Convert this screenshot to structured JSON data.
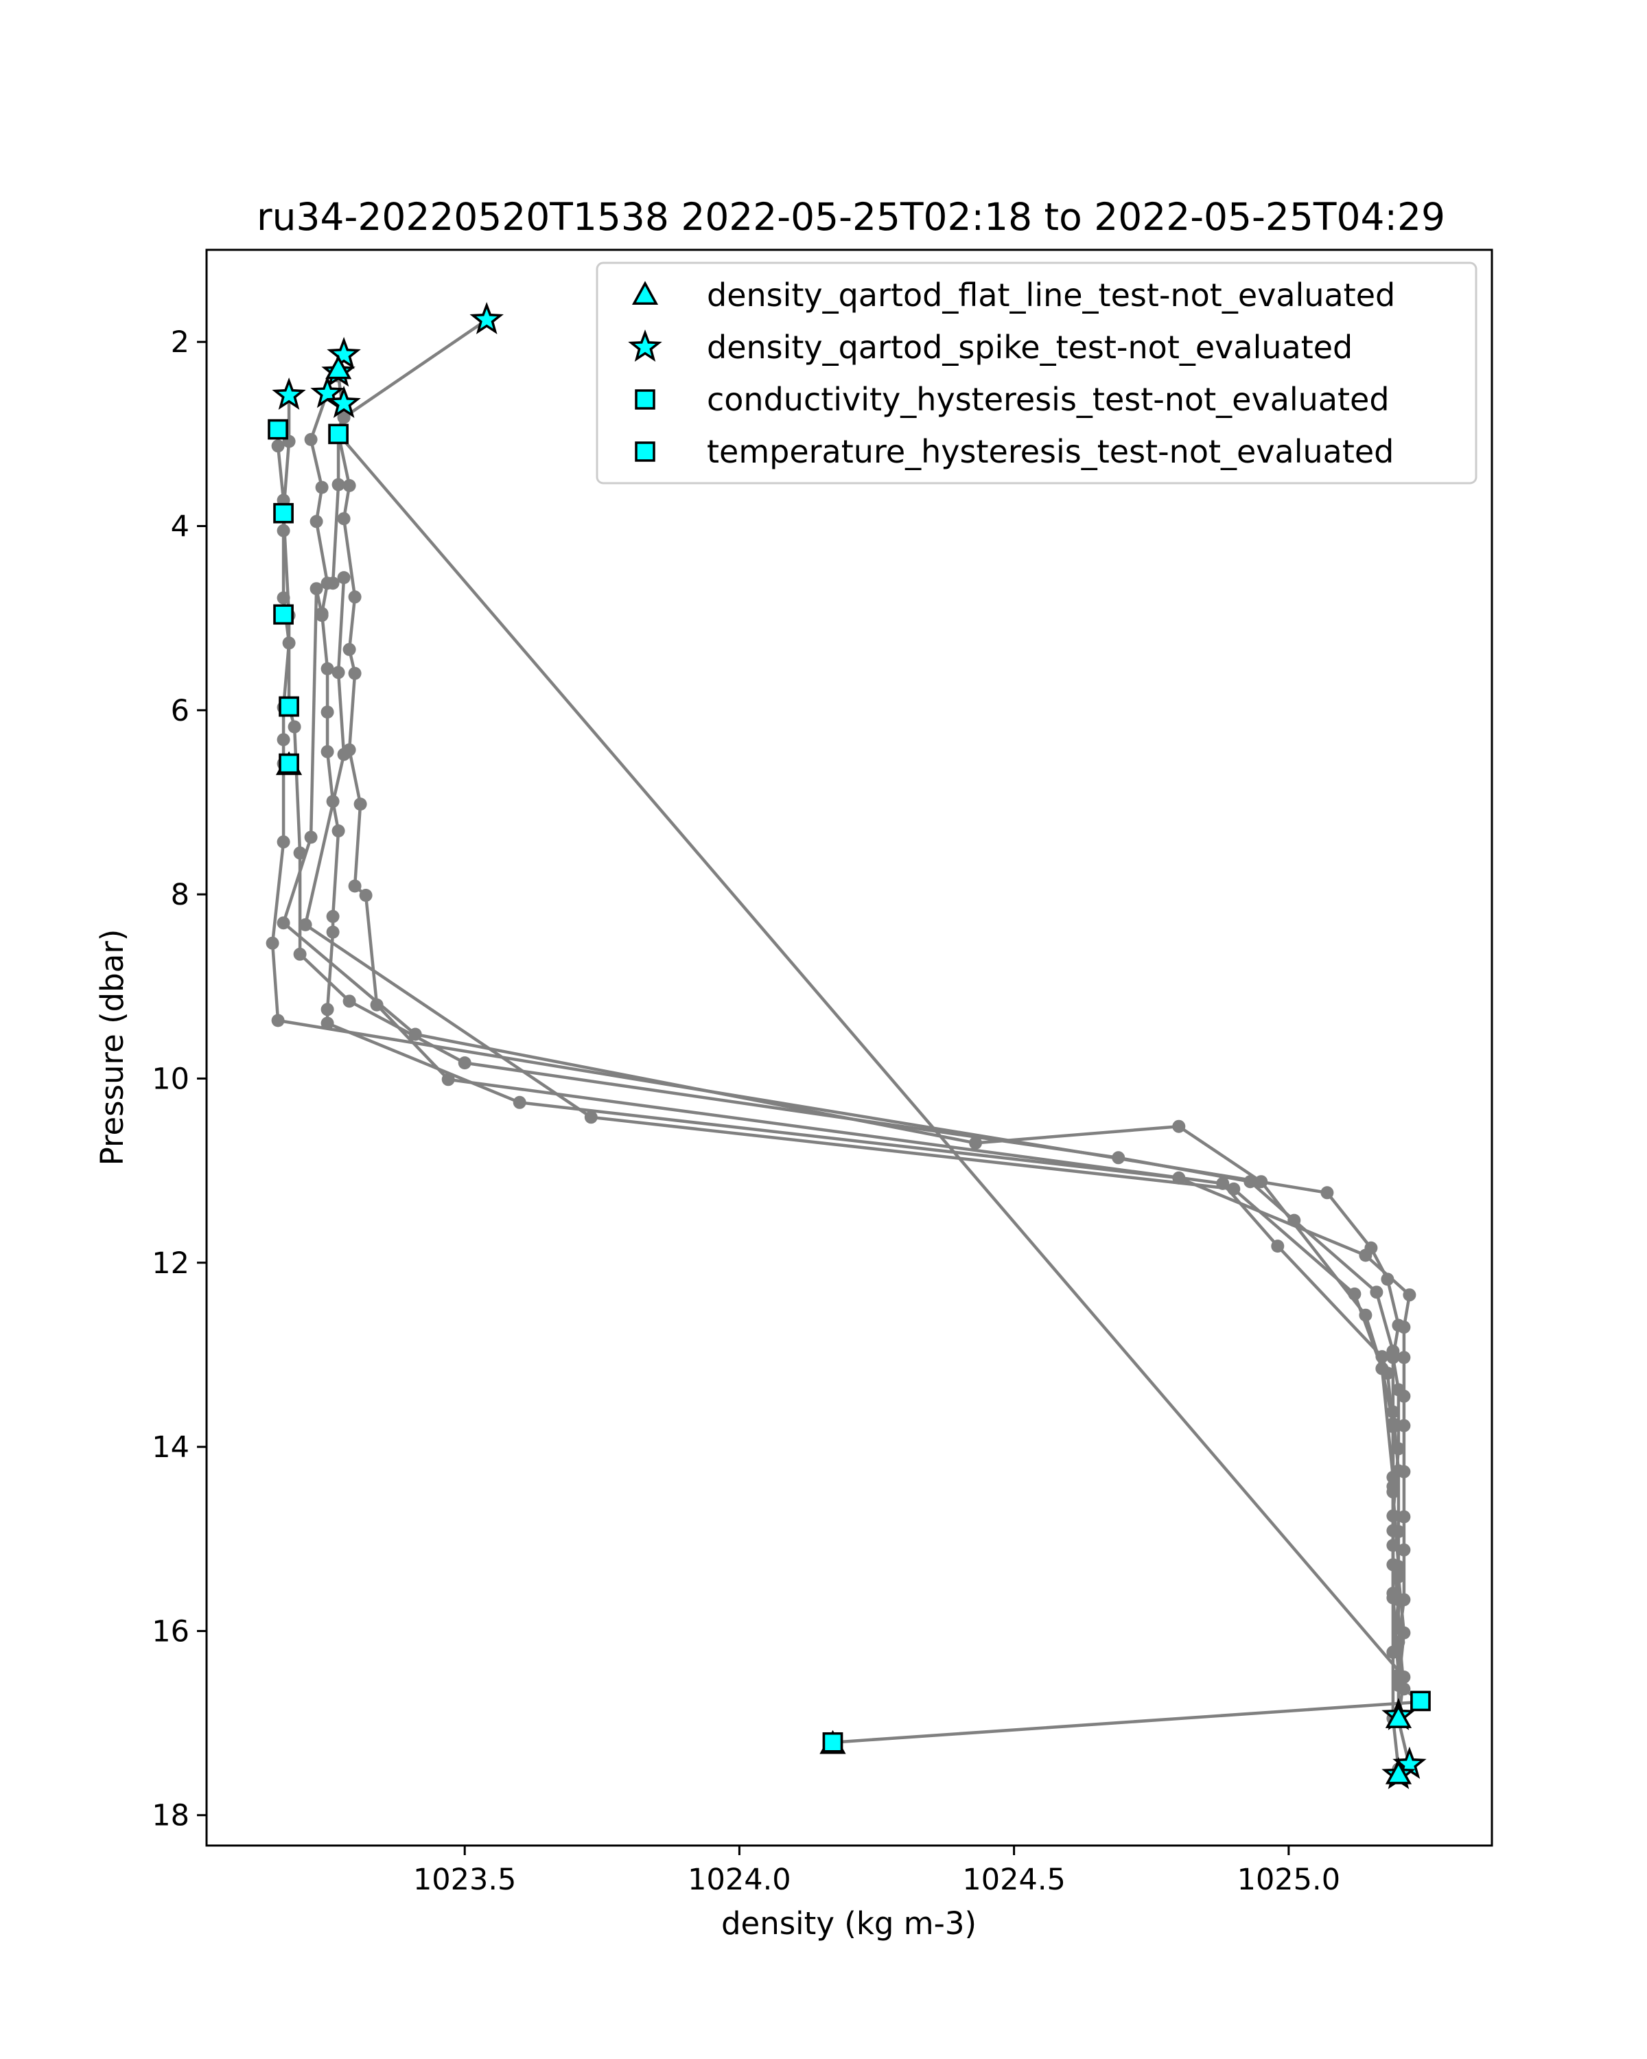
{
  "chart_data": {
    "type": "line",
    "title": "ru34-20220520T1538 2022-05-25T02:18 to 2022-05-25T04:29",
    "xlabel": "density (kg m-3)",
    "ylabel": "Pressure (dbar)",
    "xlim": [
      1023.03,
      1025.37
    ],
    "ylim": [
      18.33,
      1.0
    ],
    "y_inverted": true,
    "xticks": [
      1023.5,
      1024.0,
      1024.5,
      1025.0
    ],
    "xtick_labels": [
      "1023.5",
      "1024.0",
      "1024.5",
      "1025.0"
    ],
    "yticks": [
      2,
      4,
      6,
      8,
      10,
      12,
      14,
      16,
      18
    ],
    "ytick_labels": [
      "2",
      "4",
      "6",
      "8",
      "10",
      "12",
      "14",
      "16",
      "18"
    ],
    "grid": false,
    "legend_position": "top-right",
    "colors": {
      "profile": "#808080",
      "flag_fill": "#00ffff",
      "flag_edge": "#000000"
    },
    "series": [
      {
        "role": "profile-path",
        "marker": "circle",
        "points": [
          [
            1023.54,
            1.76
          ],
          [
            1023.28,
            2.82
          ],
          [
            1023.27,
            3.0
          ],
          [
            1023.29,
            3.56
          ],
          [
            1023.28,
            3.92
          ],
          [
            1023.3,
            4.77
          ],
          [
            1023.29,
            5.34
          ],
          [
            1023.3,
            5.6
          ],
          [
            1023.29,
            6.43
          ],
          [
            1023.31,
            7.02
          ],
          [
            1023.3,
            7.91
          ],
          [
            1023.32,
            8.01
          ],
          [
            1023.34,
            9.2
          ],
          [
            1023.47,
            10.01
          ],
          [
            1024.88,
            11.14
          ],
          [
            1024.98,
            11.82
          ],
          [
            1025.17,
            13.02
          ],
          [
            1025.18,
            13.2
          ],
          [
            1025.19,
            13.78
          ],
          [
            1025.19,
            14.49
          ],
          [
            1025.2,
            15.3
          ],
          [
            1025.2,
            15.97
          ],
          [
            1025.21,
            16.63
          ],
          [
            1025.24,
            16.77
          ],
          [
            1024.17,
            17.21
          ],
          [
            1024.17,
            17.22
          ]
        ]
      },
      {
        "role": "profile-path",
        "marker": "circle",
        "points": [
          [
            1023.27,
            2.37
          ],
          [
            1023.28,
            2.82
          ],
          [
            1023.27,
            3.0
          ],
          [
            1025.21,
            16.5
          ],
          [
            1025.2,
            16.97
          ],
          [
            1025.22,
            17.47
          ],
          [
            1025.2,
            17.58
          ]
        ]
      },
      {
        "role": "profile-path",
        "marker": "circle",
        "points": [
          [
            1023.16,
            2.95
          ],
          [
            1023.16,
            3.13
          ],
          [
            1023.17,
            3.72
          ],
          [
            1023.17,
            4.05
          ],
          [
            1023.17,
            4.78
          ],
          [
            1023.18,
            5.27
          ],
          [
            1023.17,
            5.97
          ],
          [
            1023.17,
            6.32
          ],
          [
            1023.17,
            6.58
          ],
          [
            1023.17,
            7.43
          ],
          [
            1023.15,
            8.53
          ],
          [
            1023.16,
            9.37
          ],
          [
            1025.07,
            11.24
          ],
          [
            1025.15,
            11.84
          ],
          [
            1025.18,
            12.18
          ],
          [
            1025.2,
            12.68
          ],
          [
            1025.19,
            13.03
          ],
          [
            1025.2,
            13.38
          ],
          [
            1025.2,
            14.02
          ],
          [
            1025.19,
            14.75
          ],
          [
            1025.19,
            15.28
          ],
          [
            1025.2,
            15.66
          ],
          [
            1025.19,
            16.23
          ],
          [
            1025.19,
            16.95
          ],
          [
            1025.2,
            17.5
          ]
        ]
      },
      {
        "role": "profile-path",
        "marker": "circle",
        "points": [
          [
            1023.18,
            2.6
          ],
          [
            1023.18,
            3.08
          ],
          [
            1023.17,
            3.85
          ],
          [
            1023.18,
            4.97
          ],
          [
            1023.18,
            5.96
          ],
          [
            1023.19,
            6.18
          ],
          [
            1023.2,
            7.55
          ],
          [
            1023.2,
            8.65
          ],
          [
            1023.29,
            9.16
          ],
          [
            1023.5,
            9.83
          ],
          [
            1024.69,
            10.86
          ],
          [
            1024.93,
            11.12
          ],
          [
            1025.01,
            11.54
          ],
          [
            1025.16,
            12.32
          ],
          [
            1025.19,
            12.96
          ],
          [
            1025.19,
            13.62
          ],
          [
            1025.2,
            14.26
          ],
          [
            1025.2,
            14.92
          ],
          [
            1025.2,
            15.41
          ],
          [
            1025.21,
            16.02
          ],
          [
            1025.2,
            16.59
          ]
        ]
      },
      {
        "role": "profile-path",
        "marker": "circle",
        "points": [
          [
            1023.25,
            2.55
          ],
          [
            1023.22,
            3.06
          ],
          [
            1023.24,
            3.58
          ],
          [
            1023.23,
            3.95
          ],
          [
            1023.25,
            4.62
          ],
          [
            1023.24,
            4.95
          ],
          [
            1023.25,
            5.55
          ],
          [
            1023.25,
            6.02
          ],
          [
            1023.25,
            6.45
          ],
          [
            1023.26,
            6.99
          ],
          [
            1023.27,
            7.31
          ],
          [
            1023.26,
            8.24
          ],
          [
            1023.26,
            8.41
          ],
          [
            1023.25,
            9.25
          ],
          [
            1023.25,
            9.4
          ],
          [
            1023.6,
            10.26
          ],
          [
            1024.8,
            11.08
          ],
          [
            1025.14,
            11.92
          ],
          [
            1025.22,
            12.35
          ],
          [
            1025.21,
            12.7
          ],
          [
            1025.21,
            13.03
          ],
          [
            1025.21,
            13.45
          ],
          [
            1025.21,
            13.77
          ],
          [
            1025.21,
            14.27
          ],
          [
            1025.21,
            14.76
          ],
          [
            1025.21,
            15.12
          ],
          [
            1025.21,
            15.66
          ],
          [
            1025.2,
            16.12
          ],
          [
            1025.2,
            16.98
          ]
        ]
      },
      {
        "role": "profile-path",
        "marker": "circle",
        "points": [
          [
            1023.28,
            2.7
          ],
          [
            1023.27,
            3.02
          ],
          [
            1023.27,
            3.55
          ],
          [
            1023.26,
            4.62
          ],
          [
            1023.28,
            4.56
          ],
          [
            1023.27,
            5.59
          ],
          [
            1023.28,
            6.48
          ],
          [
            1023.21,
            8.33
          ],
          [
            1023.73,
            10.42
          ],
          [
            1024.9,
            11.2
          ],
          [
            1025.12,
            12.34
          ],
          [
            1025.17,
            13.15
          ],
          [
            1025.19,
            13.75
          ],
          [
            1025.19,
            14.43
          ],
          [
            1025.19,
            15.07
          ],
          [
            1025.19,
            15.64
          ],
          [
            1025.19,
            16.23
          ]
        ]
      },
      {
        "role": "profile-path",
        "marker": "circle",
        "points": [
          [
            1023.24,
            4.97
          ],
          [
            1023.23,
            4.68
          ],
          [
            1023.22,
            7.38
          ],
          [
            1023.17,
            8.31
          ],
          [
            1023.41,
            9.52
          ],
          [
            1024.43,
            10.7
          ],
          [
            1024.8,
            10.52
          ],
          [
            1024.95,
            11.12
          ],
          [
            1025.14,
            12.57
          ],
          [
            1025.17,
            13.15
          ],
          [
            1025.19,
            14.33
          ],
          [
            1025.19,
            14.91
          ],
          [
            1025.19,
            15.59
          ],
          [
            1025.2,
            16.48
          ]
        ]
      }
    ],
    "flag_markers": [
      {
        "series": "density_qartod_spike_test-not_evaluated",
        "shape": "star",
        "points": [
          [
            1023.54,
            1.76
          ],
          [
            1023.28,
            2.14
          ],
          [
            1023.27,
            2.33
          ],
          [
            1023.18,
            2.58
          ],
          [
            1023.25,
            2.56
          ],
          [
            1023.28,
            2.67
          ],
          [
            1025.2,
            16.92
          ],
          [
            1025.22,
            17.45
          ],
          [
            1025.2,
            17.56
          ]
        ]
      },
      {
        "series": "density_qartod_flat_line_test-not_evaluated",
        "shape": "triangle",
        "points": [
          [
            1023.27,
            2.3
          ],
          [
            1025.2,
            16.95
          ],
          [
            1025.2,
            17.56
          ],
          [
            1024.17,
            17.23
          ],
          [
            1023.18,
            6.6
          ]
        ]
      },
      {
        "series": "conductivity_hysteresis_test-not_evaluated",
        "shape": "square",
        "points": [
          [
            1023.16,
            2.95
          ],
          [
            1023.27,
            3.0
          ],
          [
            1023.17,
            3.86
          ],
          [
            1023.17,
            4.96
          ],
          [
            1023.18,
            5.96
          ],
          [
            1023.18,
            6.58
          ],
          [
            1024.17,
            17.21
          ],
          [
            1025.24,
            16.76
          ]
        ]
      },
      {
        "series": "temperature_hysteresis_test-not_evaluated",
        "shape": "square",
        "points": [
          [
            1023.16,
            2.95
          ],
          [
            1023.27,
            3.0
          ],
          [
            1023.17,
            3.86
          ],
          [
            1023.17,
            4.96
          ],
          [
            1023.18,
            5.96
          ],
          [
            1023.18,
            6.58
          ],
          [
            1024.17,
            17.21
          ],
          [
            1025.24,
            16.76
          ]
        ]
      }
    ],
    "legend": [
      {
        "shape": "triangle",
        "label": "density_qartod_flat_line_test-not_evaluated"
      },
      {
        "shape": "star",
        "label": "density_qartod_spike_test-not_evaluated"
      },
      {
        "shape": "square",
        "label": "conductivity_hysteresis_test-not_evaluated"
      },
      {
        "shape": "square",
        "label": "temperature_hysteresis_test-not_evaluated"
      }
    ]
  }
}
